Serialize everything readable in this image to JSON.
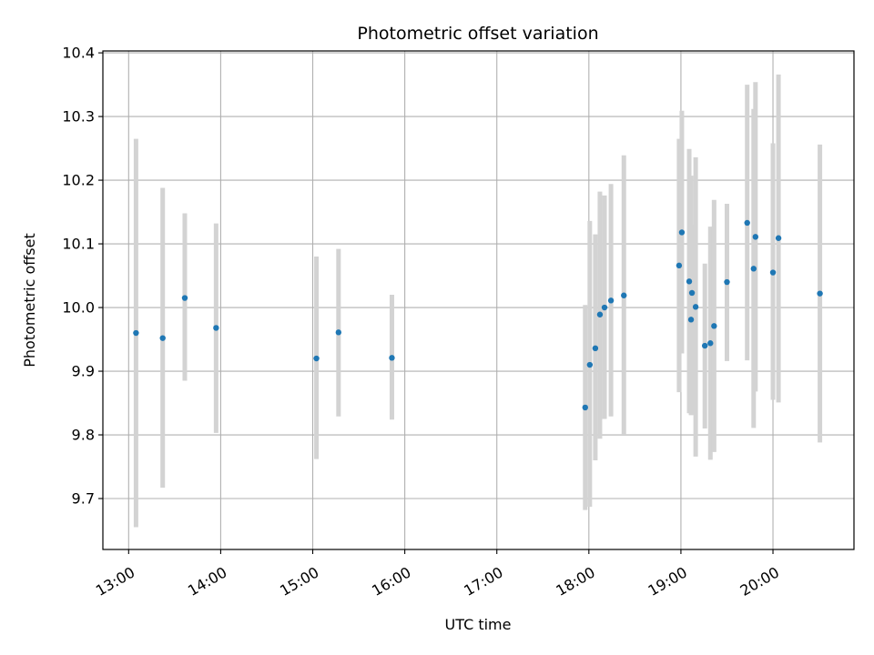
{
  "chart_data": {
    "type": "scatter",
    "title": "Photometric offset variation",
    "xlabel": "UTC time",
    "ylabel": "Photometric offset",
    "x_unit": "hours",
    "xlim": [
      12.72,
      20.88
    ],
    "ylim": [
      9.62,
      10.403
    ],
    "x_ticks": [
      {
        "value": 13,
        "label": "13:00"
      },
      {
        "value": 14,
        "label": "14:00"
      },
      {
        "value": 15,
        "label": "15:00"
      },
      {
        "value": 16,
        "label": "16:00"
      },
      {
        "value": 17,
        "label": "17:00"
      },
      {
        "value": 18,
        "label": "18:00"
      },
      {
        "value": 19,
        "label": "19:00"
      },
      {
        "value": 20,
        "label": "20:00"
      }
    ],
    "y_ticks": [
      {
        "value": 9.7,
        "label": "9.7"
      },
      {
        "value": 9.8,
        "label": "9.8"
      },
      {
        "value": 9.9,
        "label": "9.9"
      },
      {
        "value": 10.0,
        "label": "10.0"
      },
      {
        "value": 10.1,
        "label": "10.1"
      },
      {
        "value": 10.2,
        "label": "10.2"
      },
      {
        "value": 10.3,
        "label": "10.3"
      },
      {
        "value": 10.4,
        "label": "10.4"
      }
    ],
    "grid": true,
    "marker_color": "#1f77b4",
    "errorbar_color": "#d3d3d3",
    "points": [
      {
        "x": 13.08,
        "y": 9.96,
        "ylo": 9.655,
        "yhi": 10.265
      },
      {
        "x": 13.37,
        "y": 9.952,
        "ylo": 9.717,
        "yhi": 10.188
      },
      {
        "x": 13.61,
        "y": 10.015,
        "ylo": 9.885,
        "yhi": 10.148
      },
      {
        "x": 13.95,
        "y": 9.968,
        "ylo": 9.803,
        "yhi": 10.132
      },
      {
        "x": 15.04,
        "y": 9.92,
        "ylo": 9.762,
        "yhi": 10.08
      },
      {
        "x": 15.28,
        "y": 9.961,
        "ylo": 9.829,
        "yhi": 10.092
      },
      {
        "x": 15.86,
        "y": 9.921,
        "ylo": 9.824,
        "yhi": 10.02
      },
      {
        "x": 17.96,
        "y": 9.843,
        "ylo": 9.682,
        "yhi": 10.004
      },
      {
        "x": 18.01,
        "y": 9.91,
        "ylo": 9.687,
        "yhi": 10.136
      },
      {
        "x": 18.07,
        "y": 9.936,
        "ylo": 9.76,
        "yhi": 10.115
      },
      {
        "x": 18.12,
        "y": 9.989,
        "ylo": 9.794,
        "yhi": 10.182
      },
      {
        "x": 18.17,
        "y": 10.0,
        "ylo": 9.825,
        "yhi": 10.176
      },
      {
        "x": 18.24,
        "y": 10.011,
        "ylo": 9.829,
        "yhi": 10.194
      },
      {
        "x": 18.38,
        "y": 10.019,
        "ylo": 9.8,
        "yhi": 10.239
      },
      {
        "x": 18.98,
        "y": 10.066,
        "ylo": 9.867,
        "yhi": 10.265
      },
      {
        "x": 19.01,
        "y": 10.118,
        "ylo": 9.928,
        "yhi": 10.309
      },
      {
        "x": 19.09,
        "y": 10.041,
        "ylo": 9.834,
        "yhi": 10.249
      },
      {
        "x": 19.11,
        "y": 9.981,
        "ylo": 9.831,
        "yhi": 10.207
      },
      {
        "x": 19.12,
        "y": 10.023,
        "ylo": 9.832,
        "yhi": 10.13
      },
      {
        "x": 19.16,
        "y": 10.001,
        "ylo": 9.766,
        "yhi": 10.236
      },
      {
        "x": 19.26,
        "y": 9.94,
        "ylo": 9.81,
        "yhi": 10.069
      },
      {
        "x": 19.32,
        "y": 9.944,
        "ylo": 9.761,
        "yhi": 10.127
      },
      {
        "x": 19.36,
        "y": 9.971,
        "ylo": 9.773,
        "yhi": 10.169
      },
      {
        "x": 19.5,
        "y": 10.04,
        "ylo": 9.916,
        "yhi": 10.163
      },
      {
        "x": 19.72,
        "y": 10.133,
        "ylo": 9.917,
        "yhi": 10.35
      },
      {
        "x": 19.79,
        "y": 10.061,
        "ylo": 9.811,
        "yhi": 10.312
      },
      {
        "x": 19.81,
        "y": 10.111,
        "ylo": 9.868,
        "yhi": 10.354
      },
      {
        "x": 20.0,
        "y": 10.055,
        "ylo": 9.855,
        "yhi": 10.258
      },
      {
        "x": 20.06,
        "y": 10.109,
        "ylo": 9.851,
        "yhi": 10.366
      },
      {
        "x": 20.51,
        "y": 10.022,
        "ylo": 9.788,
        "yhi": 10.256
      }
    ]
  }
}
